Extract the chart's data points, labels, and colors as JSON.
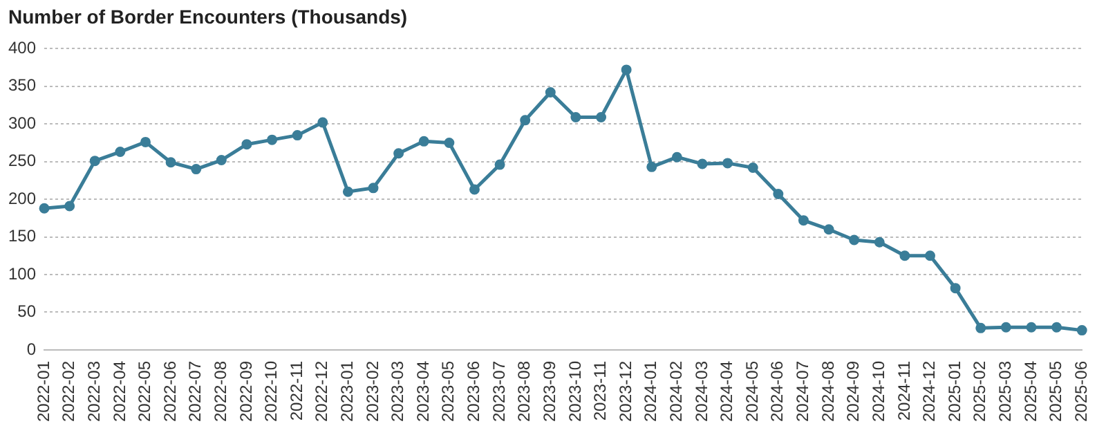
{
  "chart_data": {
    "type": "line",
    "title": "Number of Border Encounters (Thousands)",
    "categories": [
      "2022-01",
      "2022-02",
      "2022-03",
      "2022-04",
      "2022-05",
      "2022-06",
      "2022-07",
      "2022-08",
      "2022-09",
      "2022-10",
      "2022-11",
      "2022-12",
      "2023-01",
      "2023-02",
      "2023-03",
      "2023-04",
      "2023-05",
      "2023-06",
      "2023-07",
      "2023-08",
      "2023-09",
      "2023-10",
      "2023-11",
      "2023-12",
      "2024-01",
      "2024-02",
      "2024-03",
      "2024-04",
      "2024-05",
      "2024-06",
      "2024-07",
      "2024-08",
      "2024-09",
      "2024-10",
      "2024-11",
      "2024-12",
      "2025-01",
      "2025-02",
      "2025-03",
      "2025-04",
      "2025-05",
      "2025-06"
    ],
    "series": [
      {
        "color": "#3a7d98",
        "values": [
          188,
          191,
          251,
          263,
          276,
          249,
          240,
          252,
          273,
          279,
          285,
          302,
          210,
          215,
          261,
          277,
          275,
          213,
          246,
          305,
          342,
          309,
          309,
          372,
          243,
          256,
          247,
          248,
          242,
          207,
          172,
          160,
          146,
          143,
          125,
          125,
          82,
          29,
          30,
          30,
          30,
          26
        ]
      }
    ],
    "ylim": [
      0,
      400
    ],
    "yticks": [
      0,
      50,
      100,
      150,
      200,
      250,
      300,
      350,
      400
    ],
    "grid": "y",
    "marker": "circle",
    "line_style": "solid",
    "legend": false
  }
}
